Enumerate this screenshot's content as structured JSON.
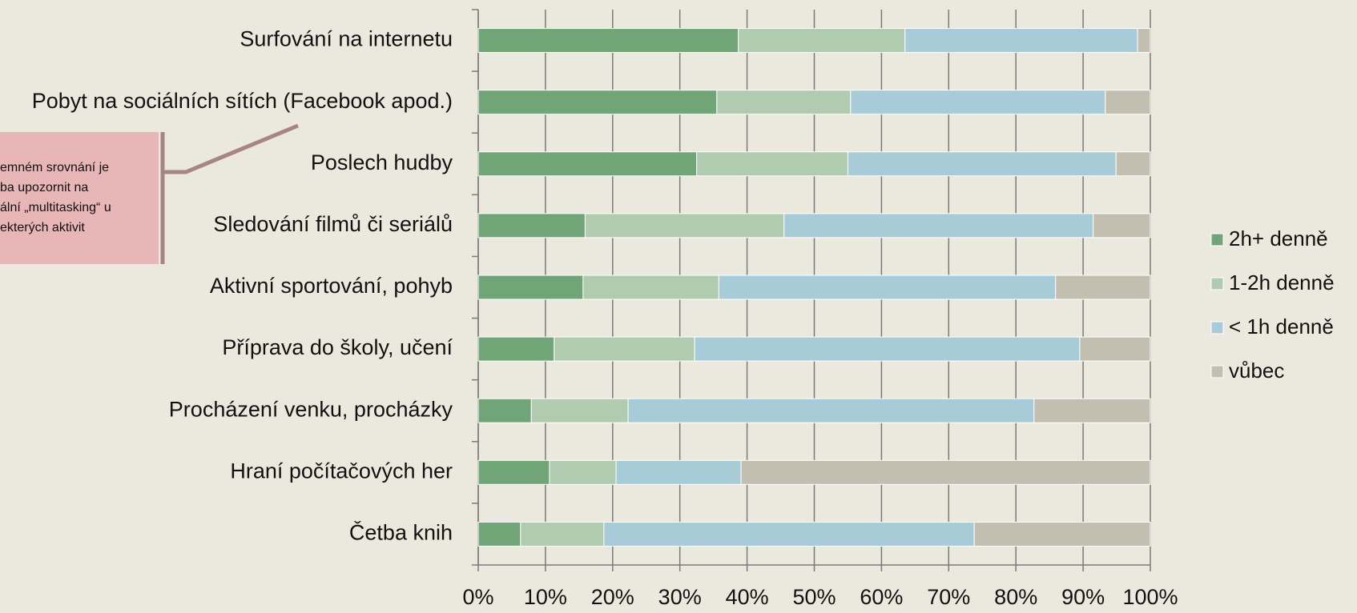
{
  "chart_data": {
    "type": "stacked_bar_horizontal",
    "categories": [
      "Surfování na internetu",
      "Pobyt na sociálních sítích (Facebook apod.)",
      "Poslech hudby",
      "Sledování filmů či seriálů",
      "Aktivní sportování, pohyb",
      "Příprava do školy, učení",
      "Procházení venku, procházky",
      "Hraní počítačových her",
      "Četba knih"
    ],
    "series": [
      {
        "name": "2h+ denně",
        "color": "#71a578",
        "values": [
          38.7,
          35.5,
          32.5,
          15.9,
          15.6,
          11.3,
          7.9,
          10.6,
          6.3
        ]
      },
      {
        "name": "1-2h denně",
        "color": "#b0cbaf",
        "values": [
          24.8,
          19.9,
          22.5,
          29.6,
          20.2,
          20.9,
          14.4,
          9.9,
          12.4
        ]
      },
      {
        "name": "< 1h denně",
        "color": "#a8ccd7",
        "values": [
          34.6,
          37.9,
          39.9,
          46.0,
          50.1,
          57.3,
          60.4,
          18.6,
          55.1
        ]
      },
      {
        "name": "vůbec",
        "color": "#c2bfb1",
        "values": [
          1.9,
          6.7,
          5.1,
          8.5,
          14.1,
          10.5,
          17.3,
          60.9,
          26.2
        ]
      }
    ],
    "xlim": [
      0,
      100
    ],
    "xticks": [
      {
        "value": 0,
        "label": "0%"
      },
      {
        "value": 10,
        "label": "10%"
      },
      {
        "value": 20,
        "label": "20%"
      },
      {
        "value": 30,
        "label": "30%"
      },
      {
        "value": 40,
        "label": "40%"
      },
      {
        "value": 50,
        "label": "50%"
      },
      {
        "value": 60,
        "label": "60%"
      },
      {
        "value": 70,
        "label": "70%"
      },
      {
        "value": 80,
        "label": "80%"
      },
      {
        "value": 90,
        "label": "90%"
      },
      {
        "value": 100,
        "label": "100%"
      }
    ],
    "grid": true,
    "legend": "right",
    "annotation": [
      "emném srovnání je",
      "ba upozornit na",
      "ální „multitasking“ u",
      "ekterých aktivit"
    ]
  }
}
